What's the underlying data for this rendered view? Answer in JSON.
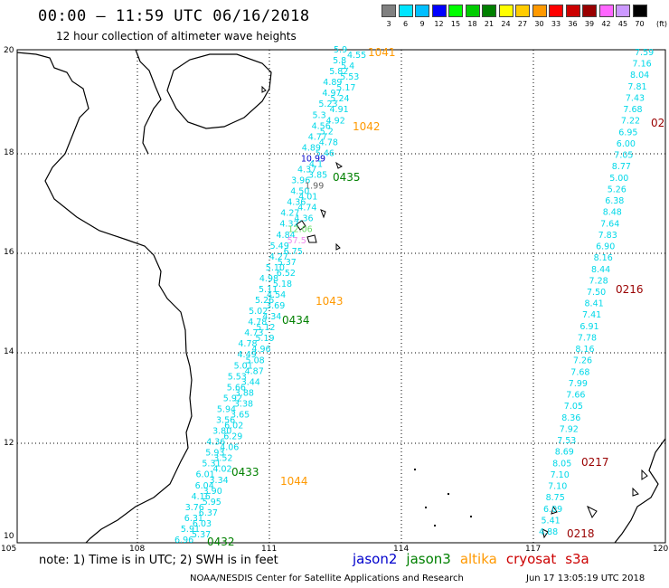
{
  "header": {
    "title": "00:00 – 11:59 UTC 06/16/2018",
    "subtitle": "12 hour collection of altimeter wave heights"
  },
  "legend": {
    "unit": "(ft)",
    "bins": [
      {
        "label": "3",
        "color": "#808080"
      },
      {
        "label": "6",
        "color": "#00e5ff"
      },
      {
        "label": "9",
        "color": "#00bfff"
      },
      {
        "label": "12",
        "color": "#0000ff"
      },
      {
        "label": "15",
        "color": "#00ff00"
      },
      {
        "label": "18",
        "color": "#00cc00"
      },
      {
        "label": "21",
        "color": "#008000"
      },
      {
        "label": "24",
        "color": "#ffff00"
      },
      {
        "label": "27",
        "color": "#ffcc00"
      },
      {
        "label": "30",
        "color": "#ff9900"
      },
      {
        "label": "33",
        "color": "#ff0000"
      },
      {
        "label": "36",
        "color": "#cc0000"
      },
      {
        "label": "39",
        "color": "#990000"
      },
      {
        "label": "42",
        "color": "#ff66ff"
      },
      {
        "label": "45",
        "color": "#cc99ff"
      },
      {
        "label": "70",
        "color": "#000000"
      }
    ]
  },
  "axes": {
    "lon_ticks": [
      "105",
      "108",
      "111",
      "114",
      "117",
      "120"
    ],
    "lat_ticks": [
      "20",
      "18",
      "16",
      "14",
      "12",
      "10"
    ]
  },
  "tracks": {
    "track_a": [
      "5.9",
      "4.55",
      "5.8",
      "5.4",
      "5.82",
      "5.53",
      "4.89",
      "5.17",
      "4.97",
      "5.24",
      "5.23",
      "4.91",
      "5.3",
      "4.92",
      "4.56",
      "5.2",
      "4.77",
      "4.78",
      "4.89",
      "5.46",
      "10.99",
      "4.1",
      "4.37",
      "3.85",
      "3.96",
      "1.99",
      "4.50",
      "4.01",
      "4.36",
      "4.74",
      "4.27",
      "4.36",
      "4.32",
      "12.06",
      "4.84",
      "57.5",
      "5.49",
      "6.75",
      "4.27",
      "5.37",
      "5.10",
      "6.52",
      "4.98",
      "5.18",
      "5.11",
      "4.54",
      "5.26",
      "3.69",
      "5.02",
      "4.34",
      "4.78",
      "5.12",
      "4.73",
      "5.19",
      "4.78",
      "4.96",
      "4.49",
      "5.08",
      "5.01",
      "4.87",
      "5.53",
      "3.44",
      "5.66",
      "3.88",
      "5.92",
      "3.38",
      "5.94",
      "3.65",
      "3.56",
      "6.02",
      "3.80",
      "6.29",
      "4.36",
      "4.06",
      "5.93",
      "3.52",
      "5.31",
      "4.02",
      "6.01",
      "3.34",
      "6.04",
      "3.90",
      "4.16",
      "5.95",
      "3.76",
      "6.37",
      "6.31",
      "6.03",
      "5.91",
      "5.37",
      "6.96"
    ],
    "track_b": [
      "7.59",
      "7.16",
      "8.04",
      "7.81",
      "7.43",
      "7.68",
      "7.22",
      "6.95",
      "6.00",
      "7.05",
      "8.77",
      "5.00",
      "5.26",
      "6.38",
      "8.48",
      "7.64",
      "7.83",
      "6.90",
      "8.16",
      "8.44",
      "7.28",
      "7.50",
      "8.41",
      "7.41",
      "6.91",
      "7.78",
      "8.16",
      "7.26",
      "7.68",
      "7.99",
      "7.66",
      "7.05",
      "8.36",
      "7.92",
      "7.53",
      "8.69",
      "8.05",
      "7.10",
      "7.10",
      "8.75",
      "6.09",
      "5.41",
      "4.88"
    ]
  },
  "pass_labels": [
    {
      "text": "1041",
      "sat": "altika"
    },
    {
      "text": "1042",
      "sat": "altika"
    },
    {
      "text": "0435",
      "sat": "jason3"
    },
    {
      "text": "1043",
      "sat": "altika"
    },
    {
      "text": "0434",
      "sat": "jason3"
    },
    {
      "text": "0433",
      "sat": "jason3"
    },
    {
      "text": "1044",
      "sat": "altika"
    },
    {
      "text": "0432",
      "sat": "jason3"
    },
    {
      "text": "02",
      "sat": "cryosat"
    },
    {
      "text": "0216",
      "sat": "cryosat"
    },
    {
      "text": "0217",
      "sat": "cryosat"
    },
    {
      "text": "0218",
      "sat": "cryosat"
    }
  ],
  "footer": {
    "note": "note: 1) Time is in UTC; 2) SWH is in feet",
    "satellites": [
      {
        "name": "jason2",
        "color": "#0000cc"
      },
      {
        "name": "jason3",
        "color": "#008000"
      },
      {
        "name": "altika",
        "color": "#ff9900"
      },
      {
        "name": "cryosat",
        "color": "#cc0000"
      },
      {
        "name": "s3a",
        "color": "#cc0000"
      }
    ],
    "credit": "NOAA/NESDIS Center for Satellite Applications and Research",
    "timestamp": "Jun 17 13:05:19 UTC 2018"
  },
  "colors": {
    "cyan": "#00d8e8",
    "altika": "#ff9900",
    "jason3": "#008000",
    "cryosat": "#990000",
    "blue": "#0000cc",
    "magenta": "#ee88ee",
    "green": "#66dd66",
    "black": "#000000"
  }
}
